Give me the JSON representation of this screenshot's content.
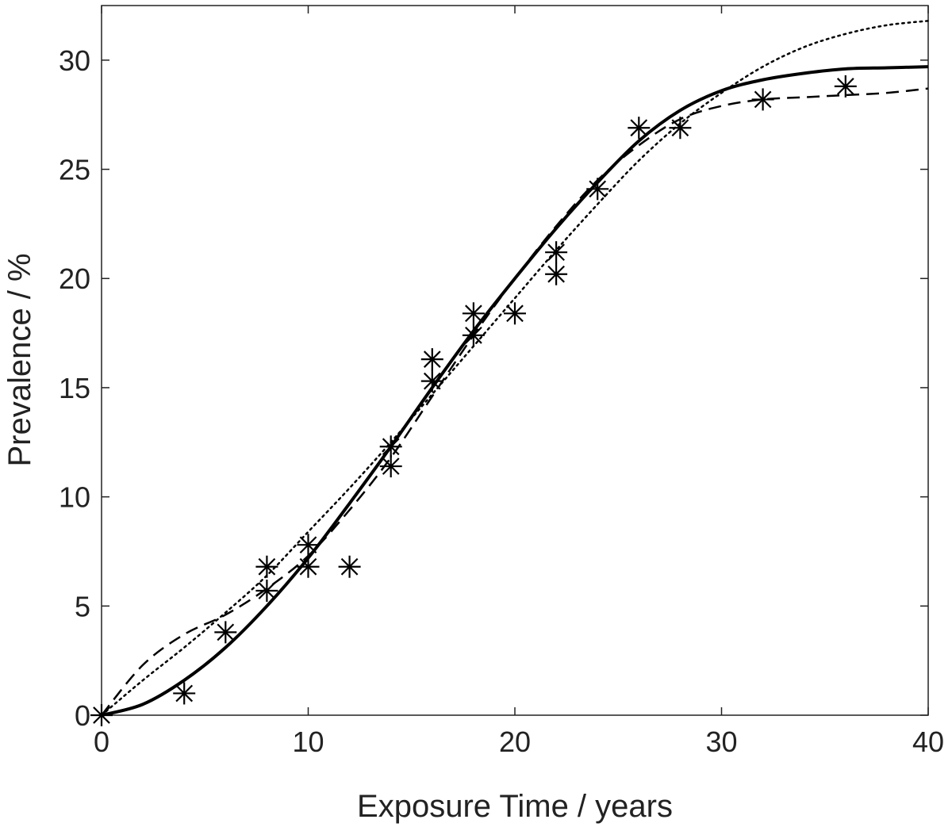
{
  "chart_data": {
    "type": "scatter",
    "title": "",
    "xlabel": "Exposure Time / years",
    "ylabel": "Prevalence / %",
    "xlim": [
      0,
      40
    ],
    "ylim": [
      0,
      32.5
    ],
    "x_ticks": [
      0,
      10,
      20,
      30,
      40
    ],
    "y_ticks": [
      0,
      5,
      10,
      15,
      20,
      25,
      30
    ],
    "x_tick_labels": [
      "0",
      "10",
      "20",
      "30",
      "40"
    ],
    "y_tick_labels": [
      "0",
      "5",
      "10",
      "15",
      "20",
      "25",
      "30"
    ],
    "grid": false,
    "legend": "none",
    "colors": {
      "ink": "#000000",
      "axis": "#222222",
      "background": "#ffffff"
    },
    "series": [
      {
        "kind": "points",
        "marker": "asterisk",
        "x": [
          0,
          4,
          6,
          8,
          8,
          10,
          10,
          12,
          14,
          14,
          16,
          16,
          18,
          18,
          20,
          22,
          22,
          24,
          26,
          28,
          32,
          36
        ],
        "y": [
          0,
          1.0,
          3.8,
          5.7,
          6.8,
          6.8,
          7.8,
          6.8,
          12.3,
          11.4,
          16.3,
          15.3,
          18.4,
          17.4,
          18.4,
          20.2,
          21.2,
          24.1,
          26.9,
          26.9,
          28.2,
          28.8
        ]
      },
      {
        "kind": "line",
        "style": "solid",
        "x": [
          0,
          2,
          4,
          6,
          8,
          10,
          12,
          14,
          16,
          18,
          20,
          22,
          24,
          26,
          28,
          30,
          32,
          34,
          36,
          38,
          40
        ],
        "y": [
          0,
          0.5,
          1.6,
          3.1,
          5.0,
          7.2,
          9.7,
          12.3,
          15.0,
          17.6,
          20.0,
          22.3,
          24.4,
          26.3,
          27.7,
          28.6,
          29.1,
          29.4,
          29.6,
          29.65,
          29.7
        ]
      },
      {
        "kind": "line",
        "style": "dashed",
        "x": [
          0,
          2,
          4,
          6,
          8,
          10,
          12,
          14,
          16,
          18,
          20,
          22,
          24,
          26,
          28,
          30,
          32,
          34,
          36,
          38,
          40
        ],
        "y": [
          0,
          2.3,
          3.7,
          4.6,
          5.8,
          7.3,
          9.4,
          11.8,
          14.6,
          17.4,
          20.0,
          22.4,
          24.5,
          26.1,
          27.3,
          27.9,
          28.2,
          28.3,
          28.4,
          28.5,
          28.7
        ]
      },
      {
        "kind": "line",
        "style": "dotted",
        "x": [
          0,
          2,
          4,
          6,
          8,
          10,
          12,
          14,
          16,
          18,
          20,
          22,
          24,
          26,
          28,
          30,
          32,
          34,
          36,
          38,
          40
        ],
        "y": [
          0,
          1.6,
          3.1,
          4.7,
          6.4,
          8.4,
          10.4,
          12.5,
          14.7,
          16.9,
          19.1,
          21.3,
          23.4,
          25.4,
          27.1,
          28.5,
          29.7,
          30.6,
          31.2,
          31.6,
          31.8
        ]
      }
    ]
  }
}
